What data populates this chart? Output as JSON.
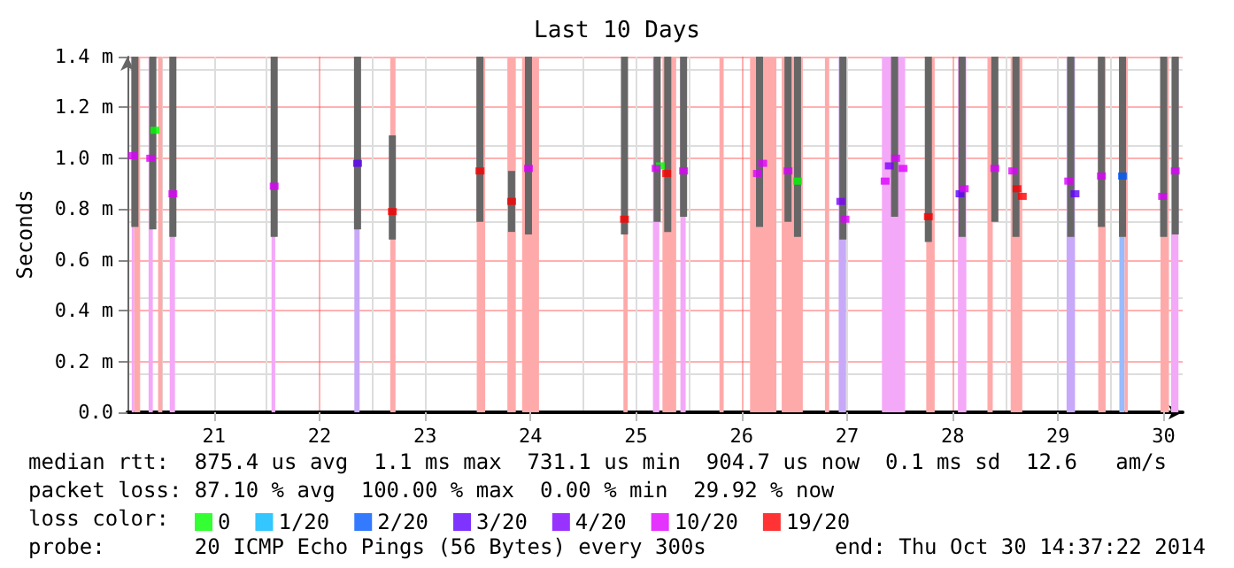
{
  "chart_data": {
    "type": "scatter",
    "title": "Last 10 Days",
    "ylabel": "Seconds",
    "xlim": [
      20.18,
      30.18
    ],
    "xticks": [
      21,
      22,
      23,
      24,
      25,
      26,
      27,
      28,
      29,
      30
    ],
    "ylim": [
      0,
      1.4
    ],
    "yticks": [
      {
        "value": 0,
        "label": "0.0"
      },
      {
        "value": 0.2,
        "label": "0.2 m"
      },
      {
        "value": 0.4,
        "label": "0.4 m"
      },
      {
        "value": 0.6,
        "label": "0.6 m"
      },
      {
        "value": 0.8,
        "label": "0.8 m"
      },
      {
        "value": 1.0,
        "label": "1.0 m"
      },
      {
        "value": 1.2,
        "label": "1.2 m"
      },
      {
        "value": 1.4,
        "label": "1.4 m"
      }
    ],
    "grid": true,
    "legend": "bottom",
    "marker": "square",
    "series": [
      {
        "type": "bar",
        "color": "#666666",
        "x": [
          20.25,
          20.42,
          20.61,
          21.57,
          22.36,
          22.69,
          23.52,
          23.82,
          23.98,
          24.89,
          25.2,
          25.3,
          25.45,
          26.17,
          26.44,
          26.53,
          26.96,
          27.45,
          27.77,
          28.09,
          28.4,
          28.6,
          29.12,
          29.41,
          29.61,
          30.0,
          30.11
        ],
        "base": [
          0.73,
          0.72,
          0.69,
          0.69,
          0.72,
          0.68,
          0.75,
          0.71,
          0.7,
          0.7,
          0.75,
          0.71,
          0.77,
          0.73,
          0.75,
          0.69,
          0.68,
          0.77,
          0.67,
          0.69,
          0.75,
          0.69,
          0.69,
          0.73,
          0.69,
          0.69,
          0.7
        ],
        "values": [
          0.67,
          0.68,
          0.71,
          0.71,
          0.68,
          0.41,
          0.65,
          0.24,
          0.7,
          0.7,
          0.65,
          0.69,
          0.63,
          0.67,
          0.65,
          0.71,
          0.72,
          0.63,
          0.73,
          0.71,
          0.65,
          0.71,
          0.71,
          0.67,
          0.71,
          0.71,
          0.7
        ]
      },
      {
        "name": "0",
        "color": "#00ff00",
        "x": [
          20.44,
          25.23,
          26.53
        ],
        "values": [
          1.11,
          0.97,
          0.91
        ]
      },
      {
        "name": "1/20",
        "color": "#00b8ff"
      },
      {
        "name": "2/20",
        "color": "#0059ff",
        "x": [
          29.61
        ],
        "values": [
          0.93
        ]
      },
      {
        "name": "3/20",
        "color": "#5e00ff",
        "x": [
          22.36,
          28.07,
          29.16
        ],
        "values": [
          0.98,
          0.86,
          0.86
        ]
      },
      {
        "name": "4/20",
        "color": "#7e00ff",
        "x": [
          26.94,
          27.4
        ],
        "values": [
          0.83,
          0.97
        ]
      },
      {
        "name": "10/20",
        "color": "#dd00ff",
        "x": [
          20.23,
          20.4,
          20.61,
          21.57,
          23.98,
          25.19,
          25.45,
          26.15,
          26.2,
          26.44,
          26.98,
          27.36,
          27.46,
          27.53,
          28.11,
          28.4,
          28.57,
          29.1,
          29.41,
          29.99,
          30.11
        ],
        "values": [
          1.01,
          1.0,
          0.86,
          0.89,
          0.96,
          0.96,
          0.95,
          0.94,
          0.98,
          0.95,
          0.76,
          0.91,
          1.0,
          0.96,
          0.88,
          0.96,
          0.95,
          0.91,
          0.93,
          0.85,
          0.95
        ]
      },
      {
        "name": "19/20",
        "color": "#ff0000",
        "x": [
          22.69,
          23.52,
          23.82,
          24.89,
          25.29,
          27.77,
          28.61,
          28.66
        ],
        "values": [
          0.79,
          0.95,
          0.83,
          0.76,
          0.94,
          0.77,
          0.88,
          0.85
        ]
      }
    ],
    "bands": [
      {
        "axis": "x",
        "from": 20.22,
        "to": 20.245,
        "color": "#f4a8f8"
      },
      {
        "axis": "x",
        "from": 20.245,
        "to": 20.3,
        "color": "#ffaaaa"
      },
      {
        "axis": "x",
        "from": 20.38,
        "to": 20.42,
        "color": "#f4a8f8"
      },
      {
        "axis": "x",
        "from": 20.47,
        "to": 20.51,
        "color": "#ffaaaa"
      },
      {
        "axis": "x",
        "from": 20.58,
        "to": 20.63,
        "color": "#f4a8f8"
      },
      {
        "axis": "x",
        "from": 21.545,
        "to": 21.58,
        "color": "#f4a8f8"
      },
      {
        "axis": "x",
        "from": 22.33,
        "to": 22.38,
        "color": "#c8a8f8"
      },
      {
        "axis": "x",
        "from": 22.67,
        "to": 22.72,
        "color": "#ffaaaa"
      },
      {
        "axis": "x",
        "from": 23.49,
        "to": 23.57,
        "color": "#ffaaaa"
      },
      {
        "axis": "x",
        "from": 23.78,
        "to": 23.86,
        "color": "#ffaaaa"
      },
      {
        "axis": "x",
        "from": 23.92,
        "to": 24.08,
        "color": "#ffaaaa"
      },
      {
        "axis": "x",
        "from": 24.88,
        "to": 24.92,
        "color": "#ffaaaa"
      },
      {
        "axis": "x",
        "from": 25.16,
        "to": 25.22,
        "color": "#f4a8f8"
      },
      {
        "axis": "x",
        "from": 25.25,
        "to": 25.38,
        "color": "#ffaaaa"
      },
      {
        "axis": "x",
        "from": 25.42,
        "to": 25.47,
        "color": "#f4a8f8"
      },
      {
        "axis": "x",
        "from": 25.79,
        "to": 25.83,
        "color": "#ffaaaa"
      },
      {
        "axis": "x",
        "from": 26.08,
        "to": 26.33,
        "color": "#ffaaaa"
      },
      {
        "axis": "x",
        "from": 26.38,
        "to": 26.58,
        "color": "#ffaaaa"
      },
      {
        "axis": "x",
        "from": 26.79,
        "to": 26.83,
        "color": "#ffaaaa"
      },
      {
        "axis": "x",
        "from": 26.92,
        "to": 26.99,
        "color": "#c8a8f8"
      },
      {
        "axis": "x",
        "from": 27.33,
        "to": 27.55,
        "color": "#f4a8f8"
      },
      {
        "axis": "x",
        "from": 27.75,
        "to": 27.83,
        "color": "#ffaaaa"
      },
      {
        "axis": "x",
        "from": 28.05,
        "to": 28.13,
        "color": "#f4a8f8"
      },
      {
        "axis": "x",
        "from": 28.33,
        "to": 28.38,
        "color": "#ffaaaa"
      },
      {
        "axis": "x",
        "from": 28.55,
        "to": 28.66,
        "color": "#ffaaaa"
      },
      {
        "axis": "x",
        "from": 29.08,
        "to": 29.16,
        "color": "#c8a8f8"
      },
      {
        "axis": "x",
        "from": 29.38,
        "to": 29.45,
        "color": "#ffaaaa"
      },
      {
        "axis": "x",
        "from": 29.58,
        "to": 29.63,
        "color": "#99bbff"
      },
      {
        "axis": "x",
        "from": 29.63,
        "to": 29.66,
        "color": "#ffaaaa"
      },
      {
        "axis": "x",
        "from": 29.97,
        "to": 30.05,
        "color": "#ffaaaa"
      },
      {
        "axis": "x",
        "from": 30.07,
        "to": 30.14,
        "color": "#f4a8f8"
      }
    ],
    "annotations": [
      "median rtt:  875.4 us avg  1.1 ms max  731.1 us min  904.7 us now  0.1 ms sd  12.6   am/s",
      "packet loss: 87.10 % avg  100.00 % max  0.00 % min  29.92 % now",
      "loss color:",
      "probe:       20 ICMP Echo Pings (56 Bytes) every 300s",
      "end: Thu Oct 30 14:37:22 2014"
    ]
  }
}
